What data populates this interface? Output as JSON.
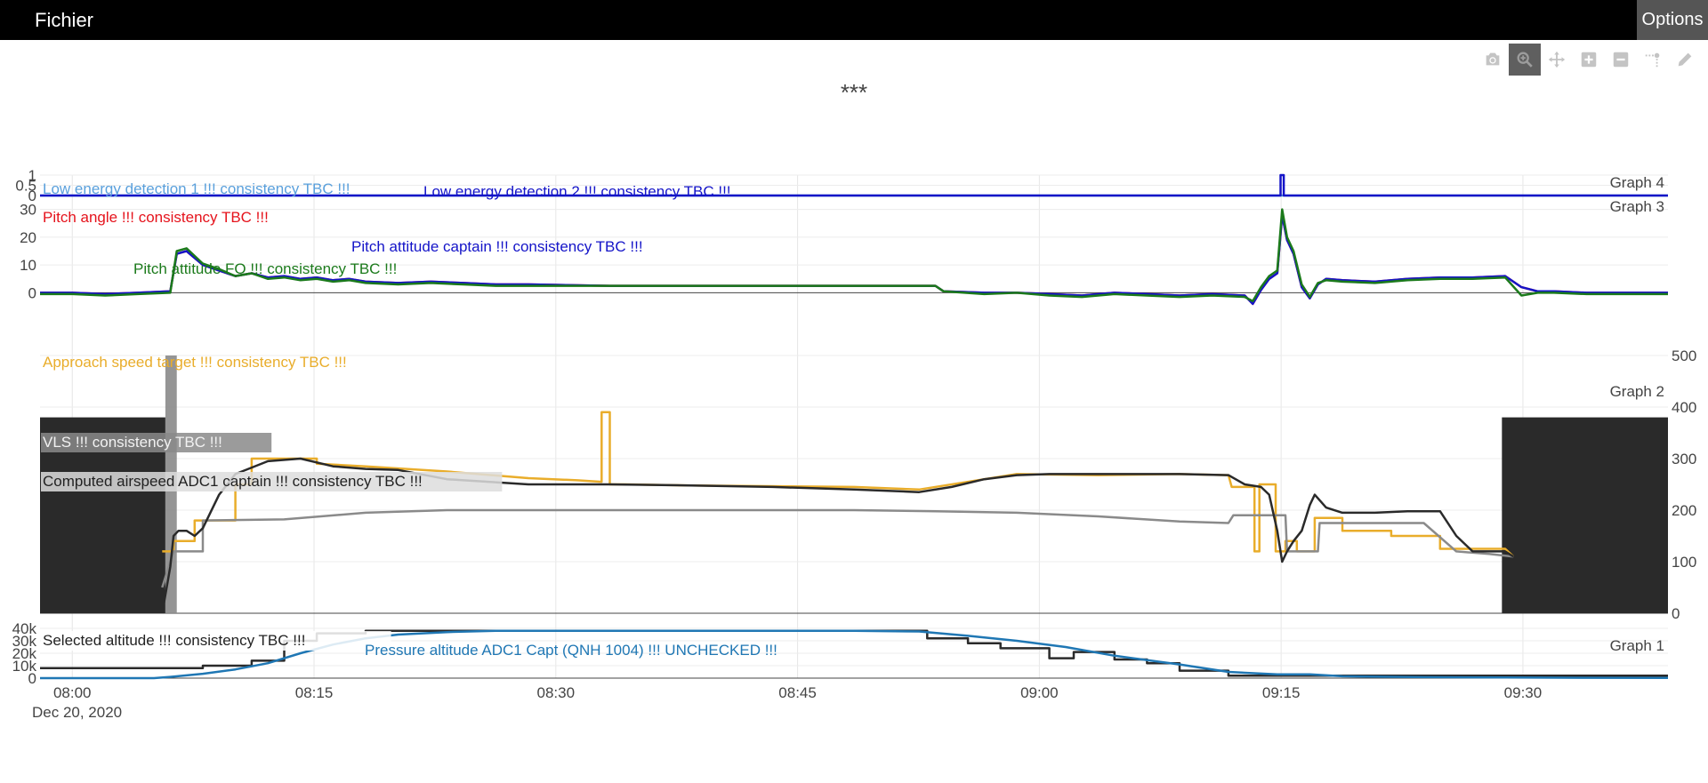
{
  "app": {
    "menu_file": "Fichier",
    "menu_options": "Options"
  },
  "modebar": [
    {
      "name": "camera-icon",
      "label": "Download plot as a png"
    },
    {
      "name": "zoom-icon",
      "label": "Zoom",
      "active": true
    },
    {
      "name": "pan-icon",
      "label": "Pan"
    },
    {
      "name": "zoom-in-icon",
      "label": "Zoom in"
    },
    {
      "name": "zoom-out-icon",
      "label": "Zoom out"
    },
    {
      "name": "spike-lines-icon",
      "label": "Toggle Spike Lines"
    },
    {
      "name": "pencil-icon",
      "label": "Draw"
    }
  ],
  "colors": {
    "red": "#e5131c",
    "green": "#1b7a1b",
    "blue_dark": "#1414c8",
    "blue_light": "#5aa0dc",
    "orange": "#e9ad2b",
    "dark": "#2a2a2a",
    "gray": "#8a8a8a",
    "pressure_blue": "#1f77b4"
  },
  "chart_data": {
    "type": "line",
    "title": "***",
    "x_range": [
      "2020-12-20 07:58",
      "2020-12-20 09:39"
    ],
    "x_ticks": [
      "08:00",
      "08:15",
      "08:30",
      "08:45",
      "09:00",
      "09:15",
      "09:30"
    ],
    "x_tick_minutes": [
      2,
      17,
      32,
      47,
      62,
      77,
      92
    ],
    "x_date_label": "Dec 20, 2020",
    "panels": [
      {
        "name": "Graph 4",
        "ylim": [
          0,
          1
        ],
        "y_ticks": [
          "1",
          "0.5",
          "0"
        ],
        "y_tick_values": [
          1,
          0.5,
          0
        ],
        "series": [
          {
            "name": "Low energy detection 1 !!! consistency TBC !!!",
            "color_key": "blue_light",
            "x": [
              0,
              100
            ],
            "y": [
              0,
              0
            ]
          },
          {
            "name": "Low energy detection 2 !!! consistency TBC !!!",
            "color_key": "blue_dark",
            "x": [
              0,
              76.2,
              76.2,
              76.4,
              76.4,
              100
            ],
            "y": [
              0,
              0,
              1,
              1,
              0,
              0
            ]
          }
        ]
      },
      {
        "name": "Graph 3",
        "ylim": [
          -5,
          35
        ],
        "y_ticks": [
          "30",
          "20",
          "10",
          "0"
        ],
        "y_tick_values": [
          30,
          20,
          10,
          0
        ],
        "series": [
          {
            "name": "Pitch angle !!! consistency TBC !!!",
            "color_key": "red",
            "x": [
              0,
              2,
              4,
              6,
              8,
              8.4,
              9,
              10,
              11,
              12,
              13,
              14,
              15,
              16,
              17,
              18,
              19,
              20,
              22,
              24,
              26,
              28,
              30,
              35,
              40,
              45,
              50,
              55,
              55.5,
              58,
              60,
              62,
              64,
              66,
              68,
              70,
              72,
              74,
              74.5,
              75,
              75.5,
              76,
              76.3,
              76.6,
              77,
              77.5,
              78,
              78.5,
              79,
              80,
              82,
              84,
              86,
              88,
              90,
              91,
              92,
              93,
              95,
              97,
              100
            ],
            "y": [
              0,
              0,
              -0.5,
              0,
              0.5,
              14,
              15,
              10,
              8,
              6,
              7,
              5.5,
              6,
              5,
              5.5,
              4.5,
              5,
              4,
              3.5,
              4,
              3.5,
              3,
              3,
              2.5,
              2.5,
              2.5,
              2.5,
              2.5,
              0.5,
              0,
              0,
              -0.5,
              -1,
              0,
              -0.5,
              -1,
              -0.5,
              -1,
              -4,
              1,
              5,
              7,
              28,
              19,
              14,
              2,
              -2,
              3,
              5,
              4.5,
              4,
              5,
              5.5,
              5.5,
              6,
              2,
              0.5,
              0.5,
              0,
              0,
              0
            ]
          },
          {
            "name": "Pitch attitude captain !!! consistency TBC !!!",
            "color_key": "blue_dark",
            "x": [
              0,
              2,
              4,
              6,
              8,
              8.4,
              9,
              10,
              11,
              12,
              13,
              14,
              15,
              16,
              17,
              18,
              19,
              20,
              22,
              24,
              26,
              28,
              30,
              35,
              40,
              45,
              50,
              55,
              55.5,
              58,
              60,
              62,
              64,
              66,
              68,
              70,
              72,
              74,
              74.5,
              75,
              75.5,
              76,
              76.3,
              76.6,
              77,
              77.5,
              78,
              78.5,
              79,
              80,
              82,
              84,
              86,
              88,
              90,
              91,
              92,
              93,
              95,
              97,
              100
            ],
            "y": [
              0,
              0,
              -0.5,
              0,
              0.5,
              14,
              15,
              10,
              8,
              6,
              7,
              5.5,
              6,
              5,
              5.5,
              4.5,
              5,
              4,
              3.5,
              4,
              3.5,
              3,
              3,
              2.5,
              2.5,
              2.5,
              2.5,
              2.5,
              0.5,
              0,
              0,
              -0.5,
              -1,
              0,
              -0.5,
              -1,
              -0.5,
              -1,
              -4,
              1,
              5,
              7,
              28,
              19,
              14,
              2,
              -2,
              3,
              5,
              4.5,
              4,
              5,
              5.5,
              5.5,
              6,
              2,
              0.5,
              0.5,
              0,
              0,
              0
            ]
          },
          {
            "name": "Pitch attitude FO !!! consistency TBC !!!",
            "color_key": "green",
            "x": [
              0,
              2,
              4,
              6,
              8,
              8.4,
              9,
              10,
              11,
              12,
              13,
              14,
              15,
              16,
              17,
              18,
              19,
              20,
              22,
              24,
              26,
              28,
              30,
              35,
              40,
              45,
              50,
              55,
              55.5,
              58,
              60,
              62,
              64,
              66,
              68,
              70,
              72,
              74,
              74.5,
              75,
              75.5,
              76,
              76.3,
              76.6,
              77,
              77.5,
              78,
              78.5,
              79,
              80,
              82,
              84,
              86,
              88,
              90,
              91,
              92,
              93,
              95,
              97,
              100
            ],
            "y": [
              -0.5,
              -0.5,
              -1,
              -0.5,
              0,
              15,
              16,
              10.5,
              8.5,
              6,
              7,
              5,
              5.5,
              4.5,
              5,
              4,
              4.5,
              3.5,
              3,
              3.5,
              3,
              2.5,
              2.5,
              2.5,
              2.5,
              2.5,
              2.5,
              2.5,
              0.5,
              -0.5,
              0,
              -1,
              -1.5,
              -0.5,
              -1,
              -1.5,
              -1,
              -1.5,
              -3,
              2,
              6,
              8,
              30,
              20,
              15,
              3,
              -1.5,
              3.5,
              4.5,
              4,
              3.5,
              4.5,
              5,
              5,
              5.5,
              -1,
              0,
              0,
              -0.5,
              -0.5,
              -0.5
            ]
          }
        ]
      },
      {
        "name": "Graph 2",
        "ylim": [
          0,
          500
        ],
        "y_ticks": [
          "500",
          "400",
          "300",
          "200",
          "100",
          "0"
        ],
        "y_tick_values": [
          500,
          400,
          300,
          200,
          100,
          0
        ],
        "series": [
          {
            "name": "Approach speed target !!! consistency TBC !!!",
            "color_key": "orange",
            "x": [
              7.5,
              8.2,
              8.2,
              9.5,
              9.5,
              12,
              12,
              13,
              13,
              17,
              17,
              20,
              25,
              30,
              33,
              34.5,
              34.5,
              35,
              35,
              36,
              40,
              50,
              54,
              60,
              65,
              70,
              73,
              73.2,
              74.6,
              74.6,
              74.9,
              74.9,
              75.9,
              75.9,
              76.5,
              76.5,
              77.2,
              77.2,
              78.3,
              78.3,
              80,
              80,
              83,
              83,
              86,
              86,
              90,
              90.5
            ],
            "y": [
              120,
              120,
              140,
              140,
              180,
              180,
              250,
              250,
              300,
              300,
              290,
              285,
              275,
              262,
              258,
              255,
              390,
              390,
              250,
              250,
              248,
              245,
              240,
              270,
              268,
              270,
              268,
              245,
              245,
              120,
              120,
              250,
              250,
              120,
              120,
              140,
              140,
              120,
              120,
              185,
              185,
              160,
              160,
              150,
              150,
              125,
              125,
              110
            ]
          },
          {
            "name": "VLS !!! consistency TBC !!!",
            "color_key": "gray",
            "x": [
              7.5,
              8.2,
              8.2,
              10,
              10,
              15,
              20,
              25,
              35,
              50,
              55,
              60,
              65,
              70,
              73,
              73.3,
              76.5,
              76.6,
              78.5,
              78.6,
              85,
              87,
              89,
              90.5
            ],
            "y": [
              50,
              120,
              120,
              120,
              180,
              182,
              195,
              200,
              200,
              200,
              198,
              195,
              188,
              178,
              175,
              190,
              190,
              120,
              120,
              175,
              175,
              120,
              115,
              110
            ]
          },
          {
            "name": "Computed airspeed ADC1 captain !!! consistency TBC !!!",
            "color_key": "dark",
            "x": [
              7.5,
              8,
              8.2,
              8.5,
              9,
              9.5,
              10,
              11,
              12,
              14,
              16,
              18,
              20,
              22,
              25,
              30,
              35,
              40,
              45,
              50,
              54,
              56,
              58,
              60,
              62,
              65,
              70,
              73,
              74,
              75,
              75.5,
              76,
              76.3,
              76.6,
              77,
              77.5,
              78,
              78.3,
              79,
              80,
              82,
              84,
              86,
              87,
              88,
              90,
              90.5
            ],
            "y": [
              0,
              90,
              150,
              160,
              160,
              150,
              165,
              230,
              270,
              295,
              300,
              285,
              280,
              278,
              260,
              250,
              250,
              248,
              245,
              240,
              235,
              245,
              260,
              268,
              270,
              270,
              270,
              268,
              250,
              245,
              230,
              160,
              100,
              120,
              140,
              160,
              210,
              230,
              205,
              195,
              195,
              198,
              198,
              150,
              120,
              120,
              110
            ]
          }
        ],
        "shaded_regions": [
          {
            "x": [
              0,
              7.7
            ],
            "ylim": [
              0,
              380
            ],
            "color_key": "dark"
          },
          {
            "x": [
              7.7,
              8.4
            ],
            "ylim": [
              0,
              500
            ],
            "color_key": "gray"
          },
          {
            "x": [
              89.8,
              100
            ],
            "ylim": [
              0,
              380
            ],
            "color_key": "dark"
          }
        ]
      },
      {
        "name": "Graph 1",
        "ylim": [
          0,
          40000
        ],
        "y_ticks": [
          "40k",
          "30k",
          "20k",
          "10k",
          "0"
        ],
        "y_tick_values": [
          40000,
          30000,
          20000,
          10000,
          0
        ],
        "series": [
          {
            "name": "Selected altitude !!! consistency TBC !!!",
            "color_key": "dark",
            "x": [
              0,
              10,
              10,
              13,
              13,
              15,
              15,
              17,
              17,
              20,
              20,
              27,
              27,
              54.5,
              54.5,
              57,
              57,
              59,
              59,
              62,
              62,
              63.5,
              63.5,
              66,
              66,
              68,
              68,
              70,
              70,
              73,
              73,
              100
            ],
            "y": [
              8000,
              8000,
              10000,
              10000,
              14000,
              14000,
              30000,
              30000,
              36000,
              36000,
              38000,
              38000,
              38000,
              38000,
              32000,
              32000,
              28000,
              28000,
              24000,
              24000,
              16000,
              16000,
              21000,
              21000,
              15000,
              15000,
              12000,
              12000,
              6000,
              6000,
              2000,
              2000
            ]
          },
          {
            "name": "Pressure altitude ADC1 Capt (QNH 1004) !!! UNCHECKED !!!",
            "color_key": "pressure_blue",
            "x": [
              0,
              7,
              8,
              10,
              12,
              14,
              16,
              18,
              20,
              22,
              25,
              28,
              30,
              40,
              50,
              54,
              57,
              60,
              63,
              66,
              70,
              73,
              76,
              78,
              80,
              85,
              90,
              95,
              100
            ],
            "y": [
              0,
              0,
              1000,
              3500,
              7000,
              12000,
              20000,
              27000,
              32000,
              35000,
              37000,
              38000,
              38000,
              38000,
              38000,
              37500,
              34000,
              30000,
              25000,
              18000,
              11000,
              5000,
              3000,
              3000,
              1500,
              800,
              500,
              300,
              200
            ]
          }
        ]
      }
    ]
  }
}
